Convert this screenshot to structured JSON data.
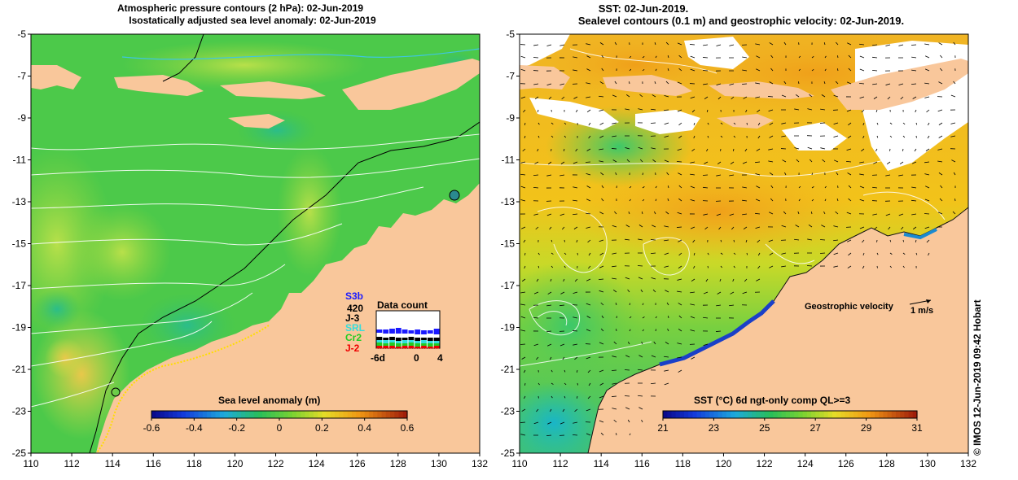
{
  "left_panel": {
    "title_line1": "Atmospheric pressure contours (2 hPa): 02-Jun-2019",
    "title_line2": "Isostatically adjusted sea level anomaly: 02-Jun-2019",
    "lat_ticks": [
      "-5",
      "-7",
      "-9",
      "-11",
      "-13",
      "-15",
      "-17",
      "-19",
      "-21",
      "-23",
      "-25"
    ],
    "lon_ticks": [
      "110",
      "112",
      "114",
      "116",
      "118",
      "120",
      "122",
      "124",
      "126",
      "128",
      "130",
      "132"
    ],
    "colorbar": {
      "title": "Sea level anomaly (m)",
      "ticks": [
        "-0.6",
        "-0.4",
        "-0.2",
        "0",
        "0.2",
        "0.4",
        "0.6"
      ],
      "range": [
        -0.6,
        0.6
      ]
    },
    "data_count": {
      "title": "Data count",
      "total": "420",
      "x_ticks": [
        "-6d",
        "0",
        "4"
      ],
      "satellites": [
        {
          "name": "S3b",
          "color": "#1a1aff"
        },
        {
          "name": "J-3",
          "color": "#000000"
        },
        {
          "name": "SRL",
          "color": "#33dddd"
        },
        {
          "name": "Cr2",
          "color": "#22cc22"
        },
        {
          "name": "J-2",
          "color": "#ee0000"
        }
      ]
    }
  },
  "right_panel": {
    "title_line1": "SST: 02-Jun-2019.",
    "title_line2": "Sealevel contours (0.1 m) and geostrophic velocity: 02-Jun-2019.",
    "lat_ticks": [
      "-5",
      "-7",
      "-9",
      "-11",
      "-13",
      "-15",
      "-17",
      "-19",
      "-21",
      "-23",
      "-25"
    ],
    "lon_ticks": [
      "110",
      "112",
      "114",
      "116",
      "118",
      "120",
      "122",
      "124",
      "126",
      "128",
      "130",
      "132"
    ],
    "colorbar": {
      "title": "SST (°C) 6d ngt-only comp QL>=3",
      "ticks": [
        "21",
        "23",
        "25",
        "27",
        "29",
        "31"
      ],
      "range": [
        21,
        31
      ]
    },
    "velocity_label": "Geostrophic velocity",
    "velocity_scale": "1 m/s"
  },
  "credit": "© IMOS 12-Jun-2019 09:42 Hobart",
  "colors": {
    "land": "#f9c79b",
    "cloud": "#ffffff",
    "contour": "#ffffff",
    "coast_line": "#000000"
  }
}
